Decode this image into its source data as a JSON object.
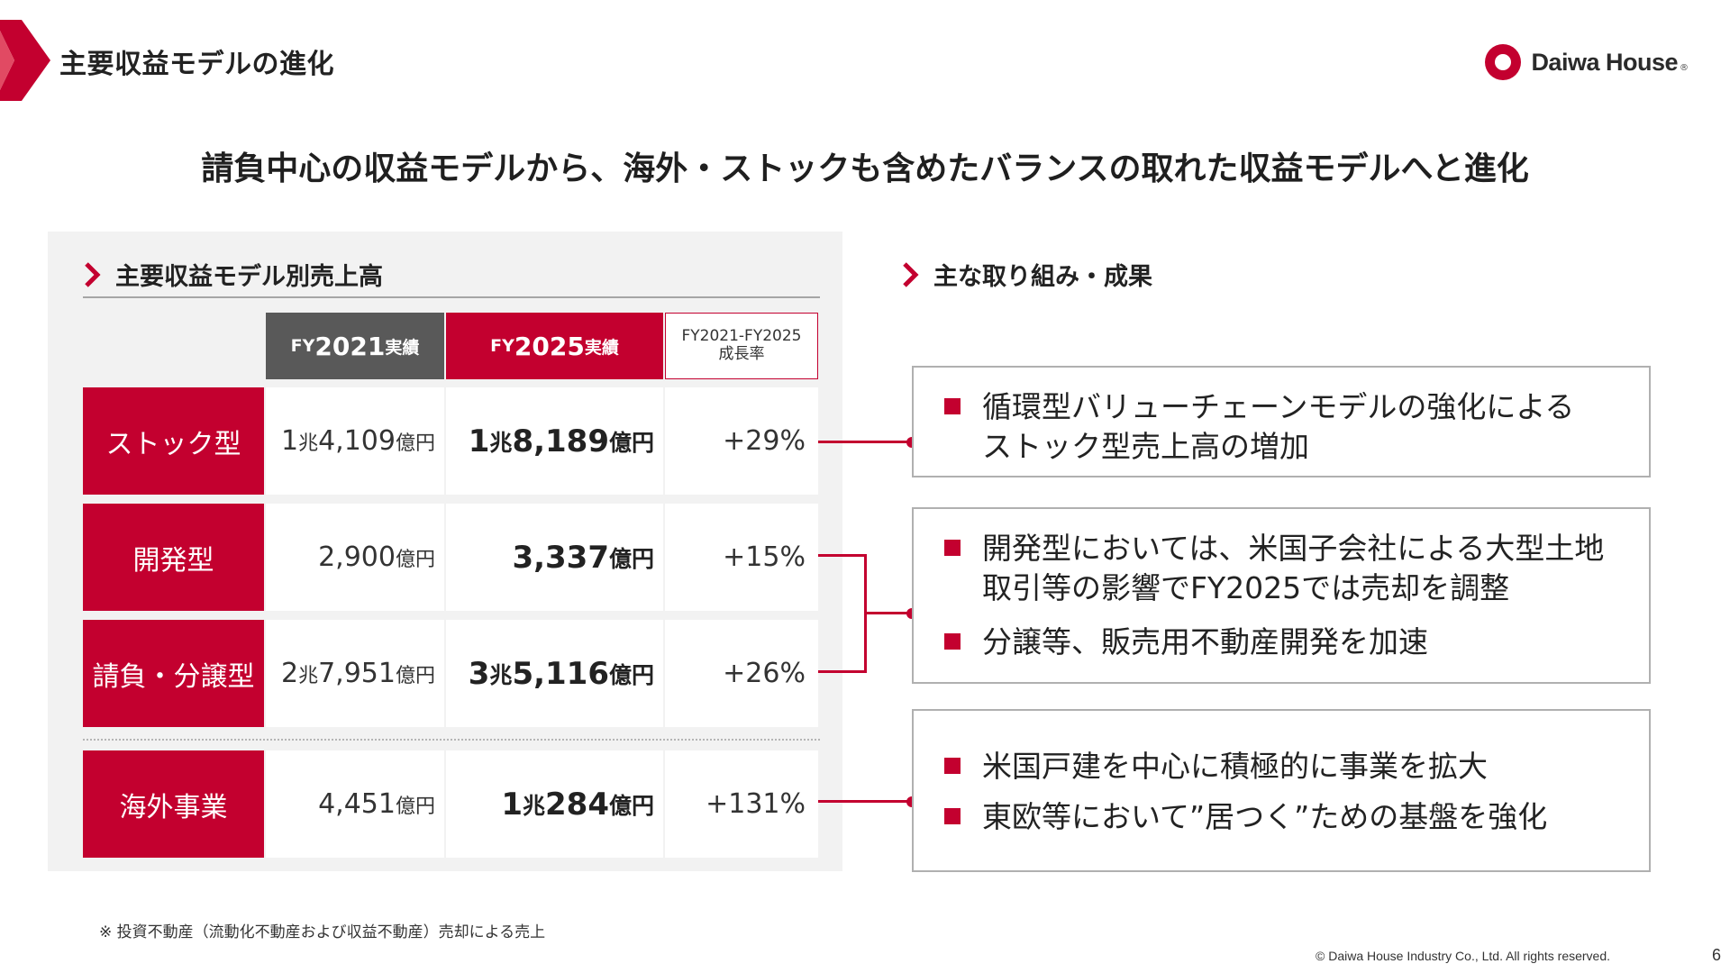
{
  "header": {
    "title": "主要収益モデルの進化",
    "brand": "Daiwa House",
    "brand_mark": "®"
  },
  "headline": "請負中心の収益モデルから、海外・ストックも含めたバランスの取れた収益モデルへと進化",
  "left": {
    "section_title": "主要収益モデル別売上高",
    "columns": {
      "fy2021": {
        "prefix": "FY",
        "year": "2021",
        "suffix": "実績"
      },
      "fy2025": {
        "prefix": "FY",
        "year": "2025",
        "suffix": "実績"
      },
      "growth": {
        "line1": "FY2021-FY2025",
        "line2": "成長率"
      }
    },
    "rows": [
      {
        "category": "ストック型",
        "fy2021": {
          "n1": "1",
          "u1": "兆",
          "n2": "4,109",
          "u2": "億円"
        },
        "fy2025": {
          "n1": "1",
          "u1": "兆",
          "n2": "8,189",
          "u2": "億円"
        },
        "growth": "+29%"
      },
      {
        "category": "開発型",
        "fy2021": {
          "n2": "2,900",
          "u2": "億円"
        },
        "fy2025": {
          "n2": "3,337",
          "u2": "億円"
        },
        "growth": "+15%"
      },
      {
        "category": "請負・分譲型",
        "fy2021": {
          "n1": "2",
          "u1": "兆",
          "n2": "7,951",
          "u2": "億円"
        },
        "fy2025": {
          "n1": "3",
          "u1": "兆",
          "n2": "5,116",
          "u2": "億円"
        },
        "growth": "+26%"
      },
      {
        "category": "海外事業",
        "fy2021": {
          "n2": "4,451",
          "u2": "億円"
        },
        "fy2025": {
          "n1": "1",
          "u1": "兆",
          "n2": "284",
          "u2": "億円"
        },
        "growth": "+131%"
      }
    ]
  },
  "right": {
    "section_title": "主な取り組み・成果",
    "cards": [
      {
        "bullets": [
          {
            "lines": [
              "循環型バリューチェーンモデルの強化による",
              "ストック型売上高の増加"
            ]
          }
        ]
      },
      {
        "bullets": [
          {
            "lines": [
              "開発型においては、米国子会社による大型土地",
              "取引等の影響でFY2025では売却を調整"
            ]
          },
          {
            "lines": [
              "分譲等、販売用不動産開発を加速"
            ]
          }
        ]
      },
      {
        "bullets": [
          {
            "lines": [
              "米国戸建を中心に積極的に事業を拡大"
            ]
          },
          {
            "lines": [
              "東欧等において”居つく”ための基盤を強化"
            ]
          }
        ]
      }
    ]
  },
  "footnote": "※ 投資不動産（流動化不動産および収益不動産）売却による売上",
  "copyright": "© Daiwa House Industry Co., Ltd. All rights reserved.",
  "page_number": "6",
  "colors": {
    "accent": "#c3002f",
    "dark_gray": "#595959",
    "panel_bg": "#f2f2f2"
  }
}
